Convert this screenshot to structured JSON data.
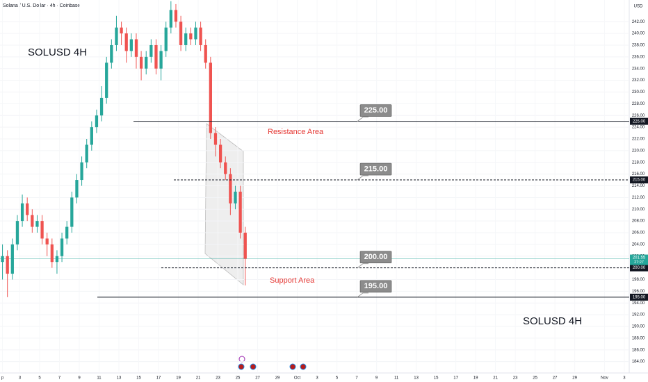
{
  "chart_data": {
    "type": "candlestick",
    "title": "Solana / U.S. Dollar · 4h · Coinbase",
    "currency": "USD",
    "up_color": "#26a69a",
    "down_color": "#ef5350",
    "x": [
      0.25,
      0.75,
      1.25,
      1.75,
      2.25,
      2.75,
      3.25,
      3.75,
      4.25,
      4.75,
      5.25,
      5.75,
      6.25,
      6.75,
      7.25,
      7.75,
      8.25,
      8.75,
      9.25,
      9.75,
      10.25,
      10.75,
      11.25,
      11.75,
      12.25,
      12.75,
      13.25,
      13.75,
      14.25,
      14.75,
      15.25,
      15.75,
      16.25,
      16.75,
      17.25,
      17.75,
      18.25,
      18.75,
      19.25,
      19.75,
      20.25,
      20.75,
      21.25,
      21.75,
      22.25,
      22.75,
      23.25,
      23.75,
      24.25,
      24.75
    ],
    "open": [
      201,
      202,
      199,
      204,
      208,
      211,
      209,
      207,
      208,
      205,
      204,
      201,
      202,
      205,
      207,
      212,
      215,
      218,
      221,
      224,
      226,
      229,
      235,
      238,
      241,
      240,
      237,
      239,
      236,
      234,
      236,
      238,
      234,
      237,
      241,
      244,
      242,
      238,
      240,
      239,
      241,
      238,
      235,
      223,
      221,
      218,
      216,
      211,
      213,
      206
    ],
    "high": [
      204,
      203,
      205,
      209,
      212.5,
      212,
      210,
      209,
      209,
      206,
      205,
      203,
      206,
      208,
      213,
      216,
      219,
      222,
      225,
      227,
      231,
      236,
      239,
      243,
      242,
      241,
      240,
      240,
      237,
      237,
      239,
      239,
      238,
      242,
      245.5,
      245,
      243,
      241,
      241,
      242,
      242,
      239,
      236,
      224,
      222,
      219,
      217,
      214,
      214,
      207
    ],
    "low": [
      198,
      195,
      198,
      203,
      207,
      208,
      206,
      206,
      204,
      202,
      200,
      199,
      201,
      204,
      206,
      211,
      214,
      217,
      220,
      223,
      225,
      228,
      234,
      237,
      238,
      235,
      236,
      234,
      232,
      233,
      235,
      233,
      232,
      236,
      240,
      241,
      237,
      237,
      238,
      238,
      237,
      234,
      222,
      219,
      217,
      215,
      209,
      210,
      205,
      197
    ],
    "close": [
      202,
      199,
      204,
      208,
      211,
      209,
      207,
      208,
      205,
      204,
      201,
      202,
      205,
      207,
      212,
      215,
      218,
      221,
      224,
      226,
      229,
      235,
      238,
      241,
      240,
      237,
      239,
      236,
      234,
      236,
      238,
      234,
      237,
      241,
      244,
      242,
      238,
      240,
      239,
      241,
      238,
      235,
      223,
      221,
      218,
      216,
      211,
      213,
      206,
      201.55
    ],
    "xlim": [
      0,
      63.5
    ],
    "ylim": [
      182.3,
      245.7
    ],
    "xticks": [
      {
        "value": 0.25,
        "label": "p"
      },
      {
        "value": 2,
        "label": "3"
      },
      {
        "value": 4,
        "label": "5"
      },
      {
        "value": 6,
        "label": "7"
      },
      {
        "value": 8,
        "label": "9"
      },
      {
        "value": 10,
        "label": "11"
      },
      {
        "value": 12,
        "label": "13"
      },
      {
        "value": 14,
        "label": "15"
      },
      {
        "value": 16,
        "label": "17"
      },
      {
        "value": 18,
        "label": "19"
      },
      {
        "value": 20,
        "label": "21"
      },
      {
        "value": 22,
        "label": "23"
      },
      {
        "value": 24,
        "label": "25"
      },
      {
        "value": 26,
        "label": "27"
      },
      {
        "value": 28,
        "label": "29"
      },
      {
        "value": 30,
        "label": "Oct"
      },
      {
        "value": 32,
        "label": "3"
      },
      {
        "value": 34,
        "label": "5"
      },
      {
        "value": 36,
        "label": "7"
      },
      {
        "value": 38,
        "label": "9"
      },
      {
        "value": 40,
        "label": "11"
      },
      {
        "value": 42,
        "label": "13"
      },
      {
        "value": 44,
        "label": "15"
      },
      {
        "value": 46,
        "label": "17"
      },
      {
        "value": 48,
        "label": "19"
      },
      {
        "value": 50,
        "label": "21"
      },
      {
        "value": 52,
        "label": "23"
      },
      {
        "value": 54,
        "label": "25"
      },
      {
        "value": 56,
        "label": "27"
      },
      {
        "value": 58,
        "label": "29"
      },
      {
        "value": 61,
        "label": "Nov"
      },
      {
        "value": 63,
        "label": "3"
      }
    ],
    "yticks": [
      {
        "value": 184,
        "label": "184.00"
      },
      {
        "value": 186,
        "label": "186.00"
      },
      {
        "value": 188,
        "label": "188.00"
      },
      {
        "value": 190,
        "label": "190.00"
      },
      {
        "value": 192,
        "label": "192.00"
      },
      {
        "value": 194,
        "label": "194.00"
      },
      {
        "value": 196,
        "label": "196.00"
      },
      {
        "value": 198,
        "label": "198.00"
      },
      {
        "value": 200,
        "label": "200.00"
      },
      {
        "value": 202,
        "label": "202.00"
      },
      {
        "value": 204,
        "label": "204.00"
      },
      {
        "value": 206,
        "label": "206.00"
      },
      {
        "value": 208,
        "label": "208.00"
      },
      {
        "value": 210,
        "label": "210.00"
      },
      {
        "value": 212,
        "label": "212.00"
      },
      {
        "value": 214,
        "label": "214.00"
      },
      {
        "value": 216,
        "label": "216.00"
      },
      {
        "value": 218,
        "label": "218.00"
      },
      {
        "value": 220,
        "label": "220.00"
      },
      {
        "value": 222,
        "label": "222.00"
      },
      {
        "value": 224,
        "label": "224.00"
      },
      {
        "value": 226,
        "label": "226.00"
      },
      {
        "value": 228,
        "label": "228.00"
      },
      {
        "value": 230,
        "label": "230.00"
      },
      {
        "value": 232,
        "label": "232.00"
      },
      {
        "value": 234,
        "label": "234.00"
      },
      {
        "value": 236,
        "label": "236.00"
      },
      {
        "value": 238,
        "label": "238.00"
      },
      {
        "value": 240,
        "label": "240.00"
      },
      {
        "value": 242,
        "label": "242.00"
      }
    ],
    "levels": [
      {
        "value": 225,
        "label": "225.00",
        "style": "solid"
      },
      {
        "value": 215,
        "label": "215.00",
        "style": "dashed"
      },
      {
        "value": 200,
        "label": "200.00",
        "style": "dashed"
      },
      {
        "value": 195,
        "label": "195.00",
        "style": "solid"
      }
    ],
    "last_price": {
      "value": 201.55,
      "label": "201.55"
    },
    "countdown": "27:27",
    "annotations": [
      "SOLUSD 4H",
      "Resistance Area",
      "Support Area",
      "SOLUSD 4H"
    ]
  }
}
